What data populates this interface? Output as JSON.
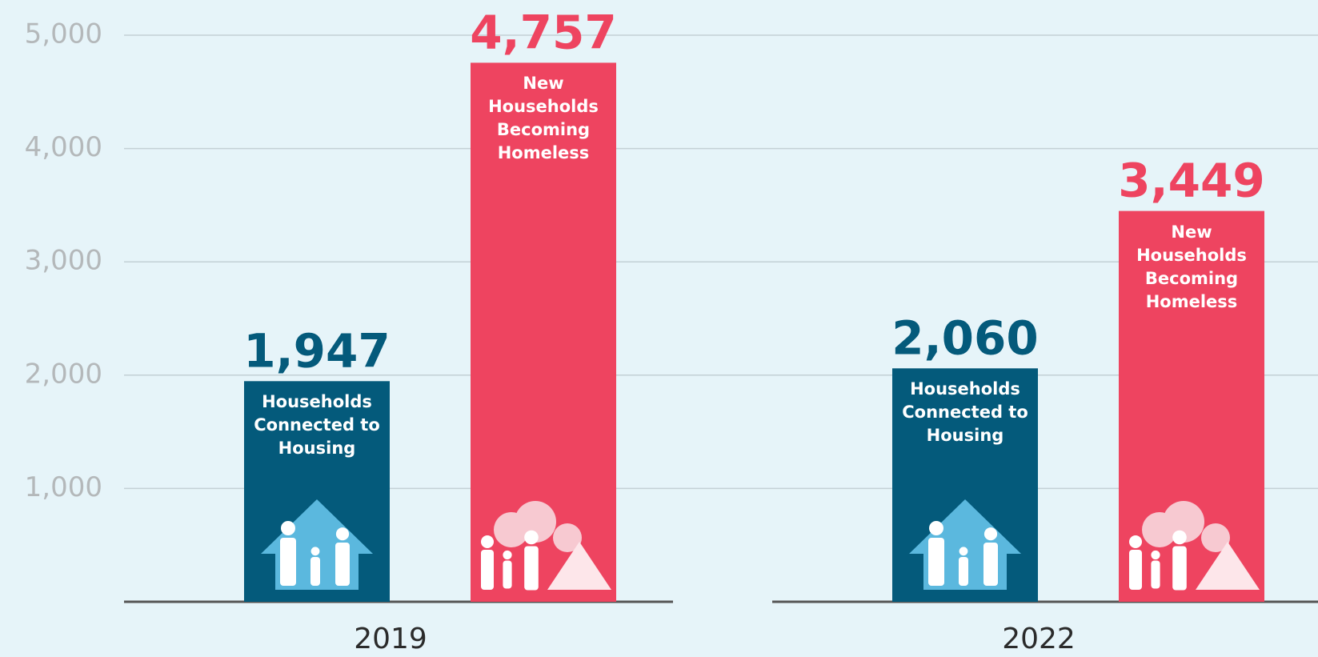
{
  "chart_data": {
    "type": "bar",
    "categories": [
      "2019",
      "2022"
    ],
    "series": [
      {
        "name": "Households Connected to Housing",
        "color": "#045a7b",
        "values": [
          1947,
          2060
        ],
        "value_labels": [
          "1,947",
          "2,060"
        ]
      },
      {
        "name": "New Households Becoming Homeless",
        "color": "#ee4460",
        "values": [
          4757,
          3449
        ],
        "value_labels": [
          "4,757",
          "3,449"
        ]
      }
    ],
    "ylim": [
      0,
      5000
    ],
    "yticks": [
      {
        "value": 1000,
        "label": "1,000"
      },
      {
        "value": 2000,
        "label": "2,000"
      },
      {
        "value": 3000,
        "label": "3,000"
      },
      {
        "value": 4000,
        "label": "4,000"
      },
      {
        "value": 5000,
        "label": "5,000"
      }
    ],
    "grid": true
  }
}
